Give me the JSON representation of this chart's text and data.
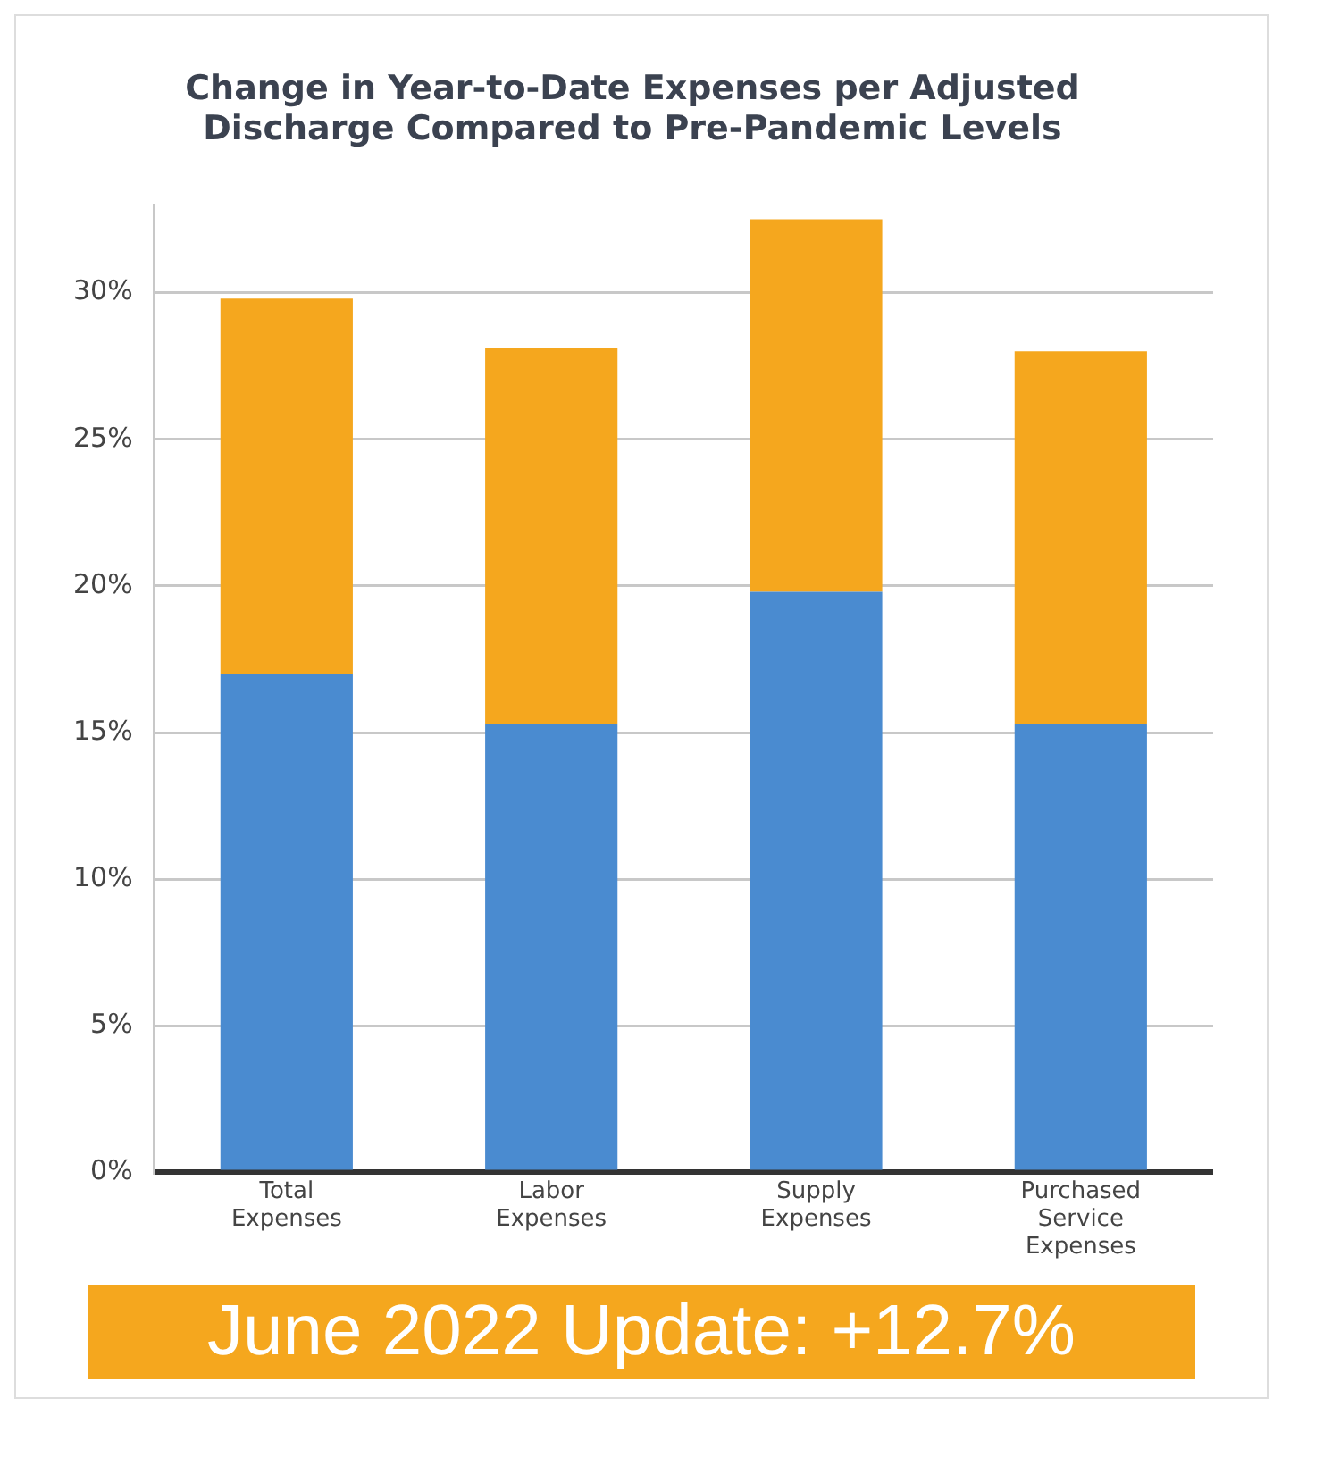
{
  "chart_data": {
    "type": "bar",
    "title": "Change in Year-to-Date Expenses per Adjusted Discharge Compared to Pre-Pandemic Levels",
    "categories": [
      "Total Expenses",
      "Labor Expenses",
      "Supply Expenses",
      "Purchased Service Expenses"
    ],
    "stacked": true,
    "series": [
      {
        "color": "#4a8bd0",
        "values": [
          17.0,
          15.3,
          19.8,
          15.3
        ]
      },
      {
        "color": "#f5a71e",
        "values": [
          12.8,
          12.8,
          12.7,
          12.7
        ]
      }
    ],
    "ylim": [
      0,
      33
    ],
    "yticks": [
      {
        "value": 0,
        "label": "0%"
      },
      {
        "value": 5,
        "label": "5%"
      },
      {
        "value": 10,
        "label": "10%"
      },
      {
        "value": 15,
        "label": "15%"
      },
      {
        "value": 20,
        "label": "20%"
      },
      {
        "value": 25,
        "label": "25%"
      },
      {
        "value": 30,
        "label": "30%"
      }
    ],
    "grid": "y",
    "legend": false,
    "annotations": [
      "June 2022 Update: +12.7%"
    ]
  }
}
